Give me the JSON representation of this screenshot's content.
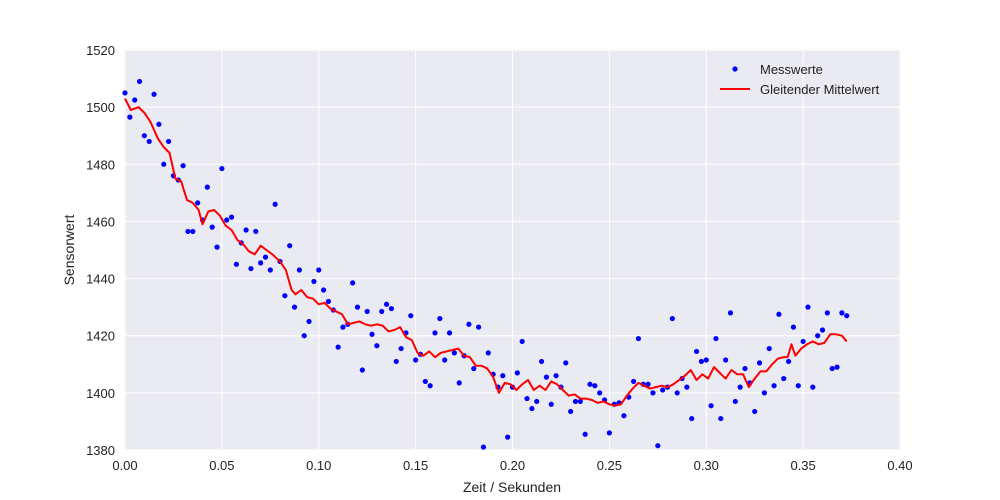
{
  "chart_data": {
    "type": "line",
    "title": "",
    "xlabel": "Zeit / Sekunden",
    "ylabel": "Sensorwert",
    "xlim": [
      0.0,
      0.4
    ],
    "ylim": [
      1380,
      1520
    ],
    "xticks": [
      0.0,
      0.05,
      0.1,
      0.15,
      0.2,
      0.25,
      0.3,
      0.35,
      0.4
    ],
    "xtick_labels": [
      "0.00",
      "0.05",
      "0.10",
      "0.15",
      "0.20",
      "0.25",
      "0.30",
      "0.35",
      "0.40"
    ],
    "yticks": [
      1380,
      1400,
      1420,
      1440,
      1460,
      1480,
      1500,
      1520
    ],
    "ytick_labels": [
      "1380",
      "1400",
      "1420",
      "1440",
      "1460",
      "1480",
      "1500",
      "1520"
    ],
    "grid": true,
    "legend_position": "top-right",
    "background_color": "#eaeaf2",
    "grid_color": "#ffffff",
    "series": [
      {
        "name": "Messwerte",
        "kind": "scatter",
        "color": "#0000ff",
        "points": [
          [
            0.0,
            1505.0
          ],
          [
            0.0025,
            1496.5
          ],
          [
            0.005,
            1502.5
          ],
          [
            0.0075,
            1509.0
          ],
          [
            0.01,
            1490.0
          ],
          [
            0.0125,
            1488.0
          ],
          [
            0.015,
            1504.5
          ],
          [
            0.0175,
            1494.0
          ],
          [
            0.02,
            1480.0
          ],
          [
            0.0225,
            1488.0
          ],
          [
            0.025,
            1476.0
          ],
          [
            0.0275,
            1474.5
          ],
          [
            0.03,
            1479.5
          ],
          [
            0.0325,
            1456.5
          ],
          [
            0.035,
            1456.5
          ],
          [
            0.0375,
            1466.5
          ],
          [
            0.04,
            1460.5
          ],
          [
            0.0425,
            1472.0
          ],
          [
            0.045,
            1458.0
          ],
          [
            0.0475,
            1451.0
          ],
          [
            0.05,
            1478.5
          ],
          [
            0.0525,
            1460.5
          ],
          [
            0.055,
            1461.5
          ],
          [
            0.0575,
            1445.0
          ],
          [
            0.06,
            1452.5
          ],
          [
            0.0625,
            1457.0
          ],
          [
            0.065,
            1443.5
          ],
          [
            0.0675,
            1456.5
          ],
          [
            0.07,
            1445.5
          ],
          [
            0.0725,
            1447.5
          ],
          [
            0.075,
            1443.0
          ],
          [
            0.0775,
            1466.0
          ],
          [
            0.08,
            1446.0
          ],
          [
            0.0825,
            1434.0
          ],
          [
            0.085,
            1451.5
          ],
          [
            0.0875,
            1430.0
          ],
          [
            0.09,
            1443.0
          ],
          [
            0.0925,
            1420.0
          ],
          [
            0.095,
            1425.0
          ],
          [
            0.0975,
            1439.0
          ],
          [
            0.1,
            1443.0
          ],
          [
            0.1025,
            1436.0
          ],
          [
            0.105,
            1432.0
          ],
          [
            0.1075,
            1429.0
          ],
          [
            0.11,
            1416.0
          ],
          [
            0.1125,
            1423.0
          ],
          [
            0.115,
            1424.0
          ],
          [
            0.1175,
            1438.5
          ],
          [
            0.12,
            1430.0
          ],
          [
            0.1225,
            1408.0
          ],
          [
            0.125,
            1428.5
          ],
          [
            0.1275,
            1420.5
          ],
          [
            0.13,
            1416.5
          ],
          [
            0.1325,
            1428.5
          ],
          [
            0.135,
            1431.0
          ],
          [
            0.1375,
            1429.5
          ],
          [
            0.14,
            1411.0
          ],
          [
            0.1425,
            1415.5
          ],
          [
            0.145,
            1421.0
          ],
          [
            0.1475,
            1427.0
          ],
          [
            0.15,
            1411.5
          ],
          [
            0.1525,
            1413.5
          ],
          [
            0.155,
            1404.0
          ],
          [
            0.1575,
            1402.5
          ],
          [
            0.16,
            1421.0
          ],
          [
            0.1625,
            1426.0
          ],
          [
            0.165,
            1411.5
          ],
          [
            0.1675,
            1421.0
          ],
          [
            0.17,
            1414.0
          ],
          [
            0.1725,
            1403.5
          ],
          [
            0.175,
            1413.0
          ],
          [
            0.1775,
            1424.0
          ],
          [
            0.18,
            1408.5
          ],
          [
            0.1825,
            1423.0
          ],
          [
            0.185,
            1381.0
          ],
          [
            0.1875,
            1414.0
          ],
          [
            0.19,
            1406.5
          ],
          [
            0.1925,
            1402.0
          ],
          [
            0.195,
            1406.0
          ],
          [
            0.1975,
            1384.5
          ],
          [
            0.2,
            1402.0
          ],
          [
            0.2025,
            1407.0
          ],
          [
            0.205,
            1418.0
          ],
          [
            0.2075,
            1398.0
          ],
          [
            0.21,
            1394.5
          ],
          [
            0.2125,
            1397.0
          ],
          [
            0.215,
            1411.0
          ],
          [
            0.2175,
            1405.5
          ],
          [
            0.22,
            1396.0
          ],
          [
            0.2225,
            1406.0
          ],
          [
            0.225,
            1402.0
          ],
          [
            0.2275,
            1410.5
          ],
          [
            0.23,
            1393.5
          ],
          [
            0.2325,
            1397.0
          ],
          [
            0.235,
            1397.0
          ],
          [
            0.2375,
            1385.5
          ],
          [
            0.24,
            1403.0
          ],
          [
            0.2425,
            1402.5
          ],
          [
            0.245,
            1400.0
          ],
          [
            0.2475,
            1397.5
          ],
          [
            0.25,
            1386.0
          ],
          [
            0.2525,
            1396.0
          ],
          [
            0.255,
            1396.5
          ],
          [
            0.2575,
            1392.0
          ],
          [
            0.26,
            1398.5
          ],
          [
            0.2625,
            1404.0
          ],
          [
            0.265,
            1419.0
          ],
          [
            0.2675,
            1403.0
          ],
          [
            0.27,
            1403.0
          ],
          [
            0.2725,
            1400.0
          ],
          [
            0.275,
            1381.5
          ],
          [
            0.2775,
            1401.0
          ],
          [
            0.28,
            1402.0
          ],
          [
            0.2825,
            1426.0
          ],
          [
            0.285,
            1400.0
          ],
          [
            0.2875,
            1405.0
          ],
          [
            0.29,
            1402.0
          ],
          [
            0.2925,
            1391.0
          ],
          [
            0.295,
            1414.5
          ],
          [
            0.2975,
            1411.0
          ],
          [
            0.3,
            1411.5
          ],
          [
            0.3025,
            1395.5
          ],
          [
            0.305,
            1419.0
          ],
          [
            0.3075,
            1391.0
          ],
          [
            0.31,
            1411.5
          ],
          [
            0.3125,
            1428.0
          ],
          [
            0.315,
            1397.0
          ],
          [
            0.3175,
            1402.0
          ],
          [
            0.32,
            1408.5
          ],
          [
            0.3225,
            1403.5
          ],
          [
            0.325,
            1393.5
          ],
          [
            0.3275,
            1410.5
          ],
          [
            0.33,
            1400.0
          ],
          [
            0.3325,
            1415.5
          ],
          [
            0.335,
            1402.5
          ],
          [
            0.3375,
            1427.5
          ],
          [
            0.34,
            1405.0
          ],
          [
            0.3425,
            1411.0
          ],
          [
            0.345,
            1423.0
          ],
          [
            0.3475,
            1402.5
          ],
          [
            0.35,
            1418.0
          ],
          [
            0.3525,
            1430.0
          ],
          [
            0.355,
            1402.0
          ],
          [
            0.3575,
            1420.0
          ],
          [
            0.36,
            1422.0
          ],
          [
            0.3625,
            1428.0
          ],
          [
            0.365,
            1408.5
          ],
          [
            0.3675,
            1409.0
          ],
          [
            0.37,
            1428.0
          ],
          [
            0.3725,
            1427.0
          ]
        ]
      },
      {
        "name": "Gleitender Mittelwert",
        "kind": "line",
        "color": "#ff0000",
        "points": [
          [
            0.0,
            1503.0
          ],
          [
            0.003,
            1499.0
          ],
          [
            0.007,
            1500.0
          ],
          [
            0.01,
            1498.0
          ],
          [
            0.013,
            1495.0
          ],
          [
            0.017,
            1489.0
          ],
          [
            0.02,
            1486.0
          ],
          [
            0.023,
            1484.0
          ],
          [
            0.026,
            1475.0
          ],
          [
            0.029,
            1474.0
          ],
          [
            0.032,
            1467.5
          ],
          [
            0.035,
            1466.5
          ],
          [
            0.038,
            1464.0
          ],
          [
            0.04,
            1459.0
          ],
          [
            0.043,
            1463.5
          ],
          [
            0.046,
            1464.0
          ],
          [
            0.049,
            1462.0
          ],
          [
            0.052,
            1458.5
          ],
          [
            0.055,
            1457.0
          ],
          [
            0.058,
            1453.5
          ],
          [
            0.061,
            1452.0
          ],
          [
            0.064,
            1449.5
          ],
          [
            0.067,
            1448.5
          ],
          [
            0.07,
            1451.5
          ],
          [
            0.073,
            1450.0
          ],
          [
            0.076,
            1448.5
          ],
          [
            0.08,
            1446.0
          ],
          [
            0.083,
            1443.0
          ],
          [
            0.086,
            1436.0
          ],
          [
            0.088,
            1434.5
          ],
          [
            0.091,
            1436.0
          ],
          [
            0.094,
            1433.5
          ],
          [
            0.097,
            1433.0
          ],
          [
            0.1,
            1431.0
          ],
          [
            0.103,
            1431.5
          ],
          [
            0.106,
            1429.5
          ],
          [
            0.109,
            1428.5
          ],
          [
            0.112,
            1427.5
          ],
          [
            0.115,
            1424.0
          ],
          [
            0.118,
            1424.5
          ],
          [
            0.121,
            1425.0
          ],
          [
            0.124,
            1424.0
          ],
          [
            0.127,
            1423.5
          ],
          [
            0.13,
            1424.0
          ],
          [
            0.133,
            1423.5
          ],
          [
            0.136,
            1421.5
          ],
          [
            0.139,
            1422.0
          ],
          [
            0.142,
            1423.0
          ],
          [
            0.145,
            1419.5
          ],
          [
            0.148,
            1418.5
          ],
          [
            0.151,
            1414.0
          ],
          [
            0.154,
            1413.0
          ],
          [
            0.157,
            1414.5
          ],
          [
            0.16,
            1412.5
          ],
          [
            0.163,
            1414.0
          ],
          [
            0.166,
            1414.5
          ],
          [
            0.169,
            1415.0
          ],
          [
            0.172,
            1415.5
          ],
          [
            0.175,
            1413.0
          ],
          [
            0.178,
            1412.5
          ],
          [
            0.181,
            1409.5
          ],
          [
            0.184,
            1409.5
          ],
          [
            0.187,
            1408.5
          ],
          [
            0.19,
            1405.5
          ],
          [
            0.193,
            1400.0
          ],
          [
            0.196,
            1403.5
          ],
          [
            0.199,
            1403.0
          ],
          [
            0.202,
            1401.0
          ],
          [
            0.205,
            1403.0
          ],
          [
            0.208,
            1404.5
          ],
          [
            0.211,
            1401.0
          ],
          [
            0.214,
            1402.5
          ],
          [
            0.217,
            1401.0
          ],
          [
            0.22,
            1404.0
          ],
          [
            0.223,
            1403.0
          ],
          [
            0.226,
            1401.0
          ],
          [
            0.229,
            1399.0
          ],
          [
            0.232,
            1399.5
          ],
          [
            0.235,
            1398.0
          ],
          [
            0.238,
            1398.0
          ],
          [
            0.241,
            1397.5
          ],
          [
            0.244,
            1396.5
          ],
          [
            0.247,
            1397.0
          ],
          [
            0.25,
            1396.0
          ],
          [
            0.253,
            1395.5
          ],
          [
            0.256,
            1396.0
          ],
          [
            0.259,
            1399.0
          ],
          [
            0.262,
            1401.5
          ],
          [
            0.265,
            1403.5
          ],
          [
            0.268,
            1402.5
          ],
          [
            0.271,
            1401.5
          ],
          [
            0.274,
            1402.0
          ],
          [
            0.277,
            1402.5
          ],
          [
            0.28,
            1402.0
          ],
          [
            0.283,
            1403.0
          ],
          [
            0.286,
            1404.5
          ],
          [
            0.289,
            1406.0
          ],
          [
            0.292,
            1408.0
          ],
          [
            0.295,
            1404.5
          ],
          [
            0.298,
            1406.5
          ],
          [
            0.301,
            1405.0
          ],
          [
            0.304,
            1409.0
          ],
          [
            0.307,
            1407.0
          ],
          [
            0.31,
            1405.0
          ],
          [
            0.313,
            1408.0
          ],
          [
            0.316,
            1406.5
          ],
          [
            0.319,
            1406.5
          ],
          [
            0.322,
            1402.0
          ],
          [
            0.325,
            1405.0
          ],
          [
            0.328,
            1407.5
          ],
          [
            0.331,
            1407.5
          ],
          [
            0.334,
            1410.0
          ],
          [
            0.337,
            1412.0
          ],
          [
            0.34,
            1412.5
          ],
          [
            0.342,
            1412.5
          ],
          [
            0.344,
            1417.0
          ],
          [
            0.346,
            1413.0
          ],
          [
            0.349,
            1415.5
          ],
          [
            0.352,
            1417.0
          ],
          [
            0.355,
            1418.0
          ],
          [
            0.358,
            1417.0
          ],
          [
            0.361,
            1417.5
          ],
          [
            0.364,
            1420.5
          ],
          [
            0.367,
            1420.5
          ],
          [
            0.37,
            1420.0
          ],
          [
            0.3725,
            1418.0
          ]
        ]
      }
    ]
  }
}
